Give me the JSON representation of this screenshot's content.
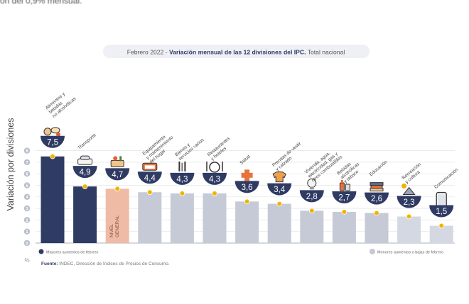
{
  "snippet": "on del 0,9% mensual.",
  "chart_data": {
    "type": "bar",
    "title": "Febrero 2022",
    "title_sep": " - ",
    "subtitle": "Variación mensual de las 12 divisiones del IPC.",
    "subtitle_tail": "Total nacional",
    "ylabel": "Variación por divisiones",
    "ylabel_unit": "%",
    "ylim": [
      0,
      8
    ],
    "yticks": [
      "0",
      "1",
      "2",
      "3",
      "4",
      "5",
      "6",
      "7",
      "8"
    ],
    "grid": true,
    "categories": [
      "Alimentos y bebidas no alcohólicas",
      "Transporte",
      "Nivel general",
      "Equipamiento y mantenimiento del hogar",
      "Bienes y servicios varios",
      "Restaurantes y hoteles",
      "Salud",
      "Prendas de vestir y calzado",
      "Vivienda, agua, electricidad, gas y otros combustibles",
      "Bebidas alcohólicas y tabaco",
      "Educación",
      "Recreación y cultura",
      "Comunicación"
    ],
    "category_lines": [
      [
        "Alimentos y",
        "bebidas",
        "no alcohólicas"
      ],
      [
        "Transporte"
      ],
      [
        "NIVEL",
        "GENERAL"
      ],
      [
        "Equipamiento",
        "y mantenimiento",
        "del hogar"
      ],
      [
        "Bienes y",
        "servicios varios"
      ],
      [
        "Restaurantes",
        "y hoteles"
      ],
      [
        "Salud"
      ],
      [
        "Prendas de vestir",
        "y calzado"
      ],
      [
        "Vivienda, agua,",
        "electricidad, gas y",
        "otros combustibles"
      ],
      [
        "Bebidas",
        "alcohólicas",
        "y tabaco"
      ],
      [
        "Educación"
      ],
      [
        "Recreación",
        "y cultura"
      ],
      [
        "Comunicación"
      ]
    ],
    "values": [
      7.5,
      4.9,
      4.7,
      4.4,
      4.3,
      4.3,
      3.6,
      3.4,
      2.8,
      2.7,
      2.6,
      2.3,
      1.5
    ],
    "value_labels": [
      "7,5",
      "4,9",
      "4,7",
      "4,4",
      "4,3",
      "4,3",
      "3,6",
      "3,4",
      "2,8",
      "2,7",
      "2,6",
      "2,3",
      "1,5"
    ],
    "groups": [
      "top",
      "top",
      "general",
      "mid",
      "mid",
      "mid",
      "mid",
      "mid",
      "mid",
      "mid",
      "mid",
      "low",
      "low"
    ],
    "icons": [
      "food-basket-icon",
      "car-icon",
      "cart-icon",
      "couch-icon",
      "scissors-icon",
      "cutlery-icon",
      "medical-cross-icon",
      "shirt-icon",
      "lightbulb-icon",
      "bottle-icon",
      "books-icon",
      "sun-icon",
      "phone-icon"
    ],
    "legend": [
      {
        "label": "Mayores aumentos de febrero",
        "position": "bottom-left"
      },
      {
        "label": "Menores aumentos o bajas de febrero",
        "position": "bottom-right"
      }
    ],
    "source_label": "Fuente:",
    "source_text": "INDEC, Dirección de Índices de Precios de Consumo.",
    "colors": {
      "top": "#2f3b63",
      "general": "#f0bba5",
      "mid": "#c5cad6",
      "low": "#d4d8e2",
      "bubble": "#2f3b63",
      "dot": "#f0b400",
      "grid": "#e1e4ea",
      "title_bg": "#eef0f5"
    }
  }
}
